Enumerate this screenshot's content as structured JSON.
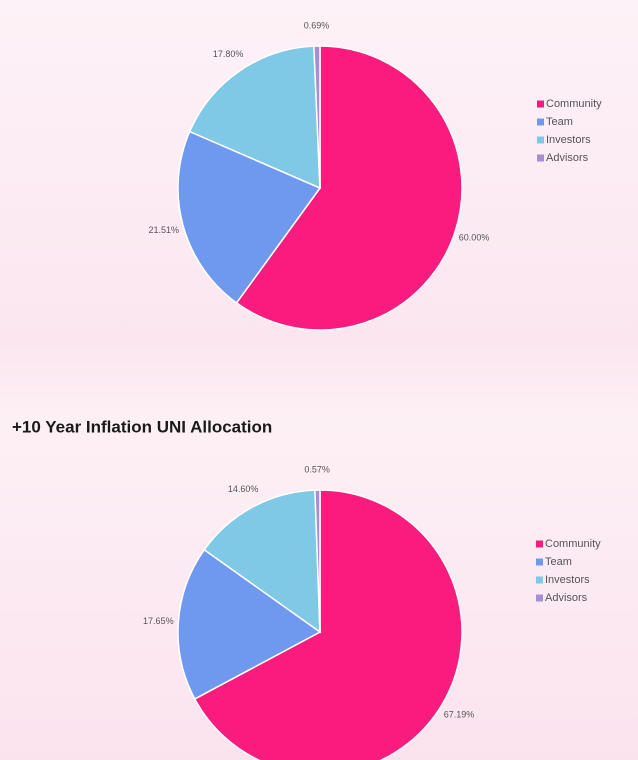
{
  "chart_data": [
    {
      "type": "pie",
      "categories": [
        "Community",
        "Team",
        "Investors",
        "Advisors"
      ],
      "values": [
        60.0,
        21.51,
        17.8,
        0.69
      ],
      "value_labels": [
        "60.00%",
        "21.51%",
        "17.80%",
        "0.69%"
      ],
      "colors": [
        "#f91b7e",
        "#6f99ee",
        "#7fc8e6",
        "#a48fd2"
      ],
      "legend": "right"
    },
    {
      "type": "pie",
      "title": "+10 Year Inflation UNI Allocation",
      "categories": [
        "Community",
        "Team",
        "Investors",
        "Advisors"
      ],
      "values": [
        67.19,
        17.65,
        14.6,
        0.57
      ],
      "value_labels": [
        "67.19%",
        "17.65%",
        "14.60%",
        "0.57%"
      ],
      "colors": [
        "#f91b7e",
        "#6f99ee",
        "#7fc8e6",
        "#a48fd2"
      ],
      "legend": "right"
    }
  ]
}
